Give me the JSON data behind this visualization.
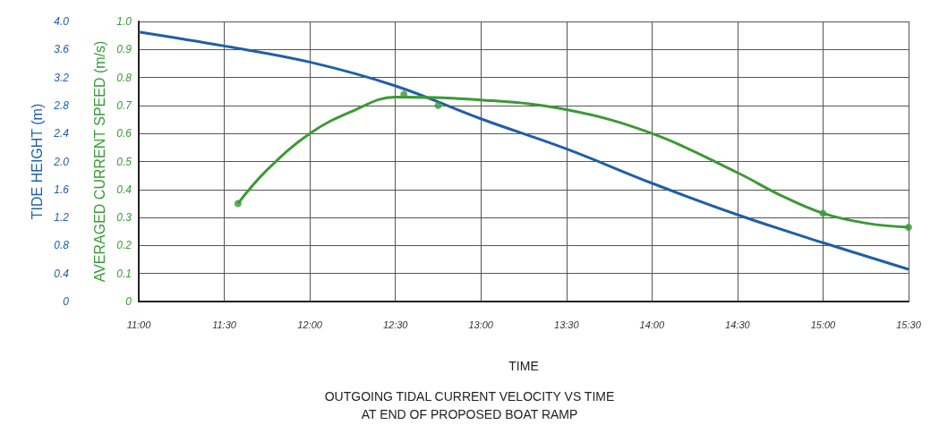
{
  "chart_data": {
    "type": "line",
    "title": "OUTGOING TIDAL CURRENT VELOCITY VS TIME\nAT END OF PROPOSED BOAT RAMP",
    "xlabel": "TIME",
    "ylabel": "AVERAGED CURRENT SPEED (m/s)",
    "y2label": "TIDE HEIGHT (m)",
    "xlim": [
      11,
      15.5
    ],
    "xticks": [
      {
        "value": 11,
        "label": "11:00"
      },
      {
        "value": 11.5,
        "label": "11:30"
      },
      {
        "value": 12,
        "label": "12:00"
      },
      {
        "value": 12.5,
        "label": "12:30"
      },
      {
        "value": 13,
        "label": "13:00"
      },
      {
        "value": 13.5,
        "label": "13:30"
      },
      {
        "value": 14,
        "label": "14:00"
      },
      {
        "value": 14.5,
        "label": "14:30"
      },
      {
        "value": 15,
        "label": "15:00"
      },
      {
        "value": 15.5,
        "label": "15:30"
      }
    ],
    "ylim": [
      0,
      1
    ],
    "yticks": [
      0,
      0.1,
      0.2,
      0.3,
      0.4,
      0.5,
      0.6,
      0.7,
      0.8,
      0.9,
      {
        "value": 1,
        "label": "1.0"
      }
    ],
    "y2lim": [
      0,
      4
    ],
    "y2ticks": [
      0,
      0.4,
      0.8,
      1.2,
      1.6,
      {
        "value": 2,
        "label": "2.0"
      },
      2.4,
      2.8,
      3.2,
      3.6,
      {
        "value": 4,
        "label": "4.0"
      }
    ],
    "grid": true,
    "series": [
      {
        "type": "line",
        "axis": "y2",
        "color": "#1f5fa8",
        "marker": "none",
        "x": [
          11,
          11.5,
          12,
          12.5,
          13,
          13.5,
          14,
          14.5,
          15,
          15.5
        ],
        "values": [
          3.85,
          3.65,
          3.42,
          3.08,
          2.61,
          2.18,
          1.69,
          1.24,
          0.84,
          0.46
        ]
      },
      {
        "type": "line",
        "color": "#3a9a35",
        "marker": "none",
        "x": [
          11.58,
          11.75,
          12,
          12.25,
          12.5,
          13,
          13.5,
          14,
          14.5,
          14.75,
          15,
          15.25,
          15.5
        ],
        "values": [
          0.35,
          0.47,
          0.6,
          0.68,
          0.73,
          0.72,
          0.685,
          0.6,
          0.46,
          0.38,
          0.315,
          0.28,
          0.265
        ]
      },
      {
        "type": "scatter",
        "color": "#3a9a35",
        "marker": "circle",
        "x": [
          11.58,
          12.55,
          12.75,
          15,
          15.5
        ],
        "values": [
          0.35,
          0.74,
          0.7,
          0.315,
          0.265
        ]
      }
    ]
  }
}
